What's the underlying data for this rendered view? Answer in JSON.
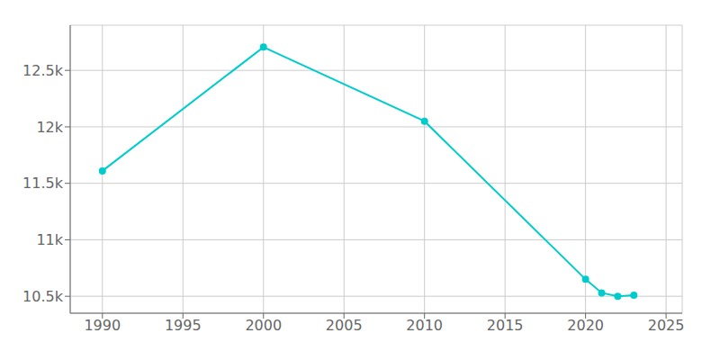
{
  "chart_data": {
    "type": "line",
    "x": [
      1990,
      2000,
      2010,
      2020,
      2021,
      2022,
      2023
    ],
    "values": [
      11610,
      12706,
      12050,
      10650,
      10530,
      10500,
      10510
    ],
    "color": "#00CCCC",
    "marker": "circle",
    "xlim": [
      1988,
      2026
    ],
    "xticks": [
      1990,
      1995,
      2000,
      2005,
      2010,
      2015,
      2020,
      2025
    ],
    "ylim": [
      10350,
      12900
    ],
    "yticks": [
      {
        "value": 10500,
        "label": "10.5k"
      },
      {
        "value": 11000,
        "label": "11k"
      },
      {
        "value": 11500,
        "label": "11.5k"
      },
      {
        "value": 12000,
        "label": "12k"
      },
      {
        "value": 12500,
        "label": "12.5k"
      }
    ],
    "grid": true
  }
}
